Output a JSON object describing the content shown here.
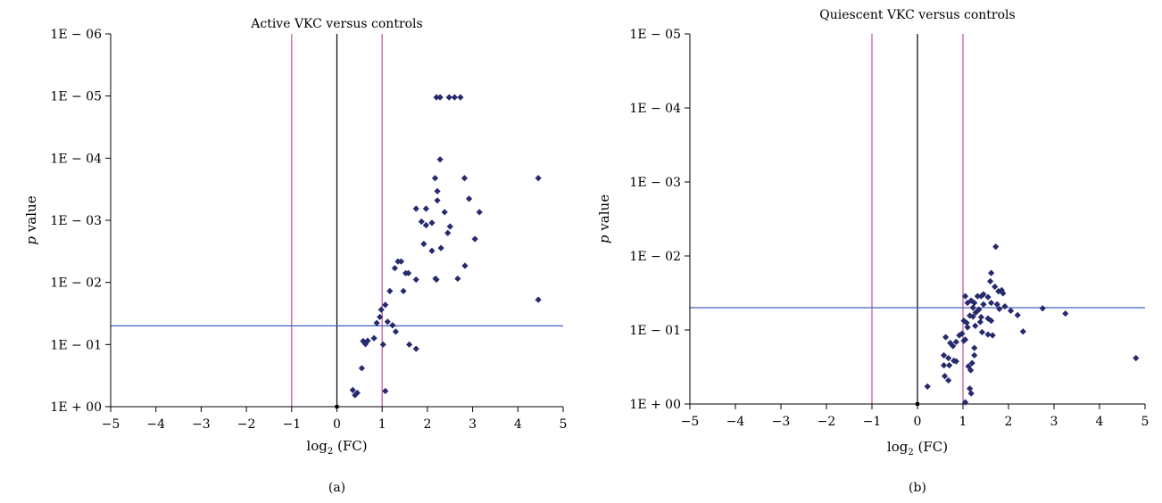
{
  "chart_data": [
    {
      "type": "scatter",
      "panel_label": "(a)",
      "title": "Active VKC versus controls",
      "xlabel": "log",
      "xlabel_sub": "2",
      "xlabel_suffix": " (FC)",
      "ylabel_italic": "p",
      "ylabel_rest": " value",
      "xlim": [
        -5,
        5
      ],
      "x_ticks": [
        "−5",
        "−4",
        "−3",
        "−2",
        "−1",
        "0",
        "1",
        "2",
        "3",
        "4",
        "5"
      ],
      "y_scale": "log-reversed",
      "y_ticks": [
        {
          "value": 1,
          "label": "1E + 00"
        },
        {
          "value": 0.1,
          "label": "1E − 01"
        },
        {
          "value": 0.01,
          "label": "1E − 02"
        },
        {
          "value": 0.001,
          "label": "1E − 03"
        },
        {
          "value": 0.0001,
          "label": "1E − 04"
        },
        {
          "value": 1e-05,
          "label": "1E − 05"
        },
        {
          "value": 1e-06,
          "label": "1E − 06"
        }
      ],
      "vertical_lines": [
        {
          "x": -1,
          "color": "#c2509c"
        },
        {
          "x": 0,
          "color": "#000000"
        },
        {
          "x": 1,
          "color": "#c2509c"
        }
      ],
      "horizontal_line": {
        "y": 0.05,
        "color": "#4060c0"
      },
      "marker_color": "#262a6e",
      "points": [
        [
          2.2,
          1.05e-05
        ],
        [
          2.28,
          1.05e-05
        ],
        [
          2.48,
          1.05e-05
        ],
        [
          2.6,
          1.05e-05
        ],
        [
          2.73,
          1.05e-05
        ],
        [
          2.28,
          0.000105
        ],
        [
          2.17,
          0.00021
        ],
        [
          4.45,
          0.00021
        ],
        [
          2.82,
          0.00021
        ],
        [
          2.22,
          0.00034
        ],
        [
          2.22,
          0.00048
        ],
        [
          2.92,
          0.00045
        ],
        [
          2.38,
          0.00074
        ],
        [
          3.15,
          0.00074
        ],
        [
          1.75,
          0.00065
        ],
        [
          1.97,
          0.00065
        ],
        [
          2.5,
          0.00126
        ],
        [
          2.1,
          0.0011
        ],
        [
          1.87,
          0.00105
        ],
        [
          1.97,
          0.0012
        ],
        [
          2.45,
          0.0016
        ],
        [
          2.3,
          0.0028
        ],
        [
          2.1,
          0.0031
        ],
        [
          3.05,
          0.002
        ],
        [
          1.92,
          0.0024
        ],
        [
          1.28,
          0.0059
        ],
        [
          1.42,
          0.0046
        ],
        [
          1.35,
          0.0046
        ],
        [
          1.58,
          0.0071
        ],
        [
          1.52,
          0.0071
        ],
        [
          1.75,
          0.009
        ],
        [
          2.2,
          0.009
        ],
        [
          2.18,
          0.0087
        ],
        [
          2.83,
          0.0054
        ],
        [
          2.67,
          0.0087
        ],
        [
          1.17,
          0.0138
        ],
        [
          1.47,
          0.0138
        ],
        [
          4.45,
          0.019
        ],
        [
          1.07,
          0.023
        ],
        [
          0.98,
          0.0275
        ],
        [
          0.95,
          0.036
        ],
        [
          0.88,
          0.045
        ],
        [
          1.12,
          0.043
        ],
        [
          1.23,
          0.049
        ],
        [
          1.3,
          0.062
        ],
        [
          0.82,
          0.079
        ],
        [
          0.68,
          0.087
        ],
        [
          0.58,
          0.088
        ],
        [
          0.63,
          0.098
        ],
        [
          1.02,
          0.1
        ],
        [
          1.6,
          0.1
        ],
        [
          1.75,
          0.117
        ],
        [
          0.55,
          0.24
        ],
        [
          0.35,
          0.54
        ],
        [
          0.45,
          0.6
        ],
        [
          0.4,
          0.65
        ],
        [
          1.07,
          0.56
        ]
      ]
    },
    {
      "type": "scatter",
      "panel_label": "(b)",
      "title": "Quiescent VKC versus controls",
      "xlabel": "log",
      "xlabel_sub": "2",
      "xlabel_suffix": " (FC)",
      "ylabel_italic": "p",
      "ylabel_rest": " value",
      "xlim": [
        -5,
        5
      ],
      "x_ticks": [
        "−5",
        "−4",
        "−3",
        "−2",
        "−1",
        "0",
        "1",
        "2",
        "3",
        "4",
        "5"
      ],
      "y_scale": "log-reversed",
      "y_ticks": [
        {
          "value": 1,
          "label": "1E + 00"
        },
        {
          "value": 0.1,
          "label": "1E − 01"
        },
        {
          "value": 0.01,
          "label": "1E − 02"
        },
        {
          "value": 0.001,
          "label": "1E − 03"
        },
        {
          "value": 0.0001,
          "label": "1E − 04"
        },
        {
          "value": 1e-05,
          "label": "1E − 05"
        }
      ],
      "vertical_lines": [
        {
          "x": -1,
          "color": "#c2509c"
        },
        {
          "x": 0,
          "color": "#000000"
        },
        {
          "x": 1,
          "color": "#c2509c"
        }
      ],
      "horizontal_line": {
        "y": 0.05,
        "color": "#4060c0"
      },
      "marker_color": "#262a6e",
      "points": [
        [
          1.72,
          0.0075
        ],
        [
          1.62,
          0.017
        ],
        [
          1.6,
          0.022
        ],
        [
          1.7,
          0.026
        ],
        [
          1.78,
          0.03
        ],
        [
          1.85,
          0.029
        ],
        [
          1.88,
          0.032
        ],
        [
          1.45,
          0.033
        ],
        [
          1.4,
          0.035
        ],
        [
          1.32,
          0.035
        ],
        [
          1.55,
          0.036
        ],
        [
          1.05,
          0.035
        ],
        [
          1.18,
          0.04
        ],
        [
          1.1,
          0.043
        ],
        [
          1.25,
          0.043
        ],
        [
          1.45,
          0.045
        ],
        [
          1.62,
          0.043
        ],
        [
          1.75,
          0.045
        ],
        [
          1.92,
          0.048
        ],
        [
          1.8,
          0.052
        ],
        [
          1.22,
          0.05
        ],
        [
          1.35,
          0.053
        ],
        [
          1.28,
          0.058
        ],
        [
          2.75,
          0.051
        ],
        [
          3.25,
          0.06
        ],
        [
          1.15,
          0.064
        ],
        [
          1.22,
          0.066
        ],
        [
          1.4,
          0.067
        ],
        [
          1.55,
          0.07
        ],
        [
          1.02,
          0.075
        ],
        [
          1.08,
          0.08
        ],
        [
          1.38,
          0.078
        ],
        [
          1.62,
          0.075
        ],
        [
          2.05,
          0.055
        ],
        [
          2.2,
          0.063
        ],
        [
          1.1,
          0.092
        ],
        [
          1.27,
          0.088
        ],
        [
          1.42,
          0.107
        ],
        [
          1.55,
          0.115
        ],
        [
          1.65,
          0.118
        ],
        [
          2.32,
          0.105
        ],
        [
          0.92,
          0.118
        ],
        [
          0.98,
          0.112
        ],
        [
          1.05,
          0.135
        ],
        [
          1.02,
          0.14
        ],
        [
          0.85,
          0.145
        ],
        [
          0.62,
          0.125
        ],
        [
          0.72,
          0.15
        ],
        [
          0.78,
          0.165
        ],
        [
          1.25,
          0.175
        ],
        [
          0.58,
          0.22
        ],
        [
          0.8,
          0.26
        ],
        [
          0.85,
          0.265
        ],
        [
          0.68,
          0.24
        ],
        [
          1.2,
          0.28
        ],
        [
          1.12,
          0.31
        ],
        [
          1.17,
          0.35
        ],
        [
          0.58,
          0.3
        ],
        [
          0.7,
          0.3
        ],
        [
          0.6,
          0.42
        ],
        [
          0.68,
          0.48
        ],
        [
          1.25,
          0.22
        ],
        [
          0.22,
          0.58
        ],
        [
          1.15,
          0.62
        ],
        [
          1.18,
          0.72
        ],
        [
          1.05,
          0.95
        ],
        [
          4.8,
          0.24
        ]
      ]
    }
  ]
}
